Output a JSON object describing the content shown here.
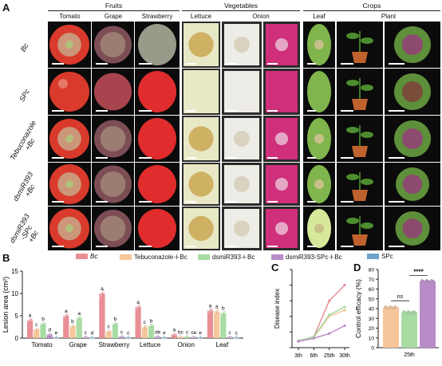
{
  "panel_a": {
    "letter": "A",
    "groups": [
      {
        "label": "Fruits"
      },
      {
        "label": "Vegetables"
      },
      {
        "label": "Crops"
      }
    ],
    "columns": [
      "Tomato",
      "Grape",
      "Strawberry",
      "Lettuce",
      "Onion",
      "",
      "Leaf",
      "Plant",
      ""
    ],
    "rows": [
      {
        "label": "Bc"
      },
      {
        "label": "SPc"
      },
      {
        "label": "Tebuconazole\n+Bc"
      },
      {
        "label": "dsmiR393\n+Bc"
      },
      {
        "label": "dsmiR393\n-SPc\n+Bc"
      }
    ]
  },
  "panel_b": {
    "letter": "B",
    "legend": [
      {
        "name": "Bc",
        "color": "#e88f95"
      },
      {
        "name": "Tebuconazole＋Bc",
        "color": "#f6c69a"
      },
      {
        "name": "dsmiR393＋Bc",
        "color": "#a8dca2"
      },
      {
        "name": "dsmiR393-SPc＋Bc",
        "color": "#b98cc7"
      },
      {
        "name": "SPc",
        "color": "#6fa3c8"
      }
    ]
  },
  "panel_c": {
    "letter": "C"
  },
  "panel_d": {
    "letter": "D"
  },
  "chart_data": [
    {
      "type": "bar",
      "ylabel": "Lesion area (cm²)",
      "ylim": [
        0,
        15
      ],
      "yticks": [
        0,
        5,
        10,
        15
      ],
      "categories": [
        "Tomato",
        "Grape",
        "Strawberry",
        "Lettuce",
        "Onion",
        "Leaf"
      ],
      "series": [
        {
          "name": "Bc",
          "color": "#e88f95",
          "values": [
            4.0,
            5.0,
            10.0,
            7.0,
            0.8,
            6.2
          ],
          "sig": [
            "a",
            "a",
            "a",
            "a",
            "a",
            "a"
          ]
        },
        {
          "name": "Tebuconazole＋Bc",
          "color": "#f6c69a",
          "values": [
            2.0,
            2.7,
            1.5,
            2.5,
            0.3,
            6.0
          ],
          "sig": [
            "c",
            "b",
            "c",
            "c",
            "bc",
            "a"
          ]
        },
        {
          "name": "dsmiR393＋Bc",
          "color": "#a8dca2",
          "values": [
            3.2,
            4.5,
            3.2,
            2.8,
            0.3,
            5.6
          ],
          "sig": [
            "b",
            "a",
            "b",
            "b",
            "c",
            "b"
          ]
        },
        {
          "name": "dsmiR393-SPc＋Bc",
          "color": "#b98cc7",
          "values": [
            0.8,
            0.2,
            0.3,
            0.3,
            0.2,
            0.2
          ],
          "sig": [
            "d",
            "c",
            "c",
            "de",
            "ce",
            "c"
          ]
        },
        {
          "name": "SPc",
          "color": "#6fa3c8",
          "values": [
            0.1,
            0.1,
            0.1,
            0.1,
            0.1,
            0.1
          ],
          "sig": [
            "e",
            "d",
            "c",
            "e",
            "e",
            "c"
          ]
        }
      ]
    },
    {
      "type": "line",
      "ylabel": "Disease index",
      "ylim": [
        0,
        100
      ],
      "yticks": [
        0,
        20,
        40,
        60,
        80,
        100
      ],
      "x": [
        "3th",
        "6th",
        "25th",
        "30th"
      ],
      "series": [
        {
          "name": "Bc",
          "color": "#e88f95",
          "values": [
            8,
            14,
            60,
            80
          ]
        },
        {
          "name": "Tebuconazole＋Bc",
          "color": "#f6c69a",
          "values": [
            8,
            13,
            40,
            48
          ]
        },
        {
          "name": "dsmiR393＋Bc",
          "color": "#a8dca2",
          "values": [
            9,
            14,
            42,
            52
          ]
        },
        {
          "name": "dsmiR393-SPc＋Bc",
          "color": "#b98cc7",
          "values": [
            8,
            12,
            18,
            28
          ]
        }
      ]
    },
    {
      "type": "bar",
      "ylabel": "Control efficacy (%)",
      "ylim": [
        0,
        80
      ],
      "yticks": [
        0,
        10,
        20,
        30,
        40,
        50,
        60,
        70,
        80
      ],
      "categories": [
        "25th"
      ],
      "series": [
        {
          "name": "Tebuconazole＋Bc",
          "color": "#f6c69a",
          "values": [
            41
          ]
        },
        {
          "name": "dsmiR393＋Bc",
          "color": "#a8dca2",
          "values": [
            36
          ]
        },
        {
          "name": "dsmiR393-SPc＋Bc",
          "color": "#b98cc7",
          "values": [
            68
          ]
        }
      ],
      "annotations": [
        "ns",
        "****"
      ]
    }
  ]
}
